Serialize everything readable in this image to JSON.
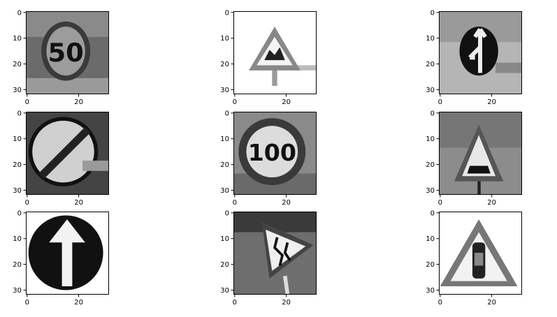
{
  "chart_data": {
    "type": "image_grid",
    "rows": 3,
    "cols": 3,
    "colormap": "gray",
    "image_size": [
      32,
      32
    ],
    "x_ticks": [
      0,
      20
    ],
    "y_ticks": [
      0,
      10,
      20,
      30
    ],
    "xlim": [
      -0.5,
      31.5
    ],
    "ylim": [
      31.5,
      -0.5
    ],
    "panels": [
      {
        "id": "panel-1",
        "subject": "speed-limit-50-sign",
        "text": "50"
      },
      {
        "id": "panel-2",
        "subject": "triangle-warning-sign"
      },
      {
        "id": "panel-3",
        "subject": "keep-left-arrow-sign"
      },
      {
        "id": "panel-4",
        "subject": "end-of-restriction-sign"
      },
      {
        "id": "panel-5",
        "subject": "speed-limit-100-sign",
        "text": "100"
      },
      {
        "id": "panel-6",
        "subject": "triangle-warning-bump-sign"
      },
      {
        "id": "panel-7",
        "subject": "ahead-only-arrow-sign"
      },
      {
        "id": "panel-8",
        "subject": "slippery-road-sign"
      },
      {
        "id": "panel-9",
        "subject": "triangle-warning-car-sign"
      }
    ]
  }
}
